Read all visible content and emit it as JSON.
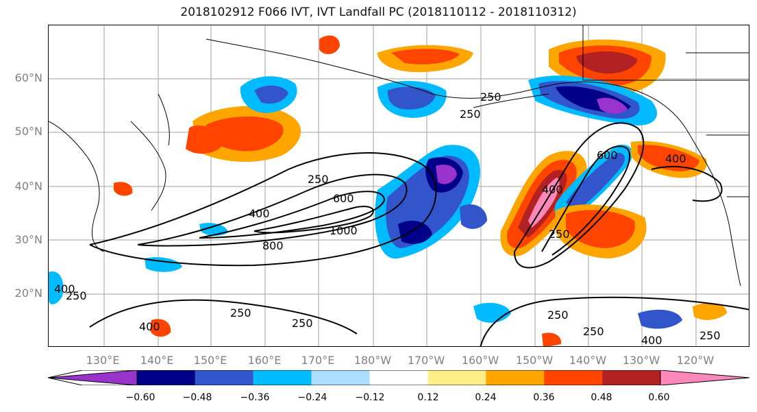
{
  "title": "2018102912 F066 IVT, IVT Landfall PC (2018110112 - 2018110312)",
  "lat_labels": [
    "60°N",
    "50°N",
    "40°N",
    "30°N",
    "20°N"
  ],
  "lon_labels": [
    "130°E",
    "140°E",
    "150°E",
    "160°E",
    "170°E",
    "180°W",
    "170°W",
    "160°W",
    "150°W",
    "140°W",
    "130°W",
    "120°W"
  ],
  "contour_labels": [
    "250",
    "400",
    "600",
    "800",
    "1000",
    "250",
    "400",
    "600",
    "250",
    "250",
    "250",
    "400",
    "250",
    "400",
    "250",
    "250",
    "400",
    "250",
    "250",
    "400"
  ],
  "colorbar": {
    "ticks": [
      "−0.60",
      "−0.48",
      "−0.36",
      "−0.24",
      "−0.12",
      "0.12",
      "0.24",
      "0.36",
      "0.48",
      "0.60"
    ],
    "colors": [
      "#9933cc",
      "#000088",
      "#3355cc",
      "#00bbff",
      "#aaddff",
      "#ffffff",
      "#ffee88",
      "#ffa500",
      "#ff4400",
      "#b22222",
      "#ff88bb"
    ]
  }
}
